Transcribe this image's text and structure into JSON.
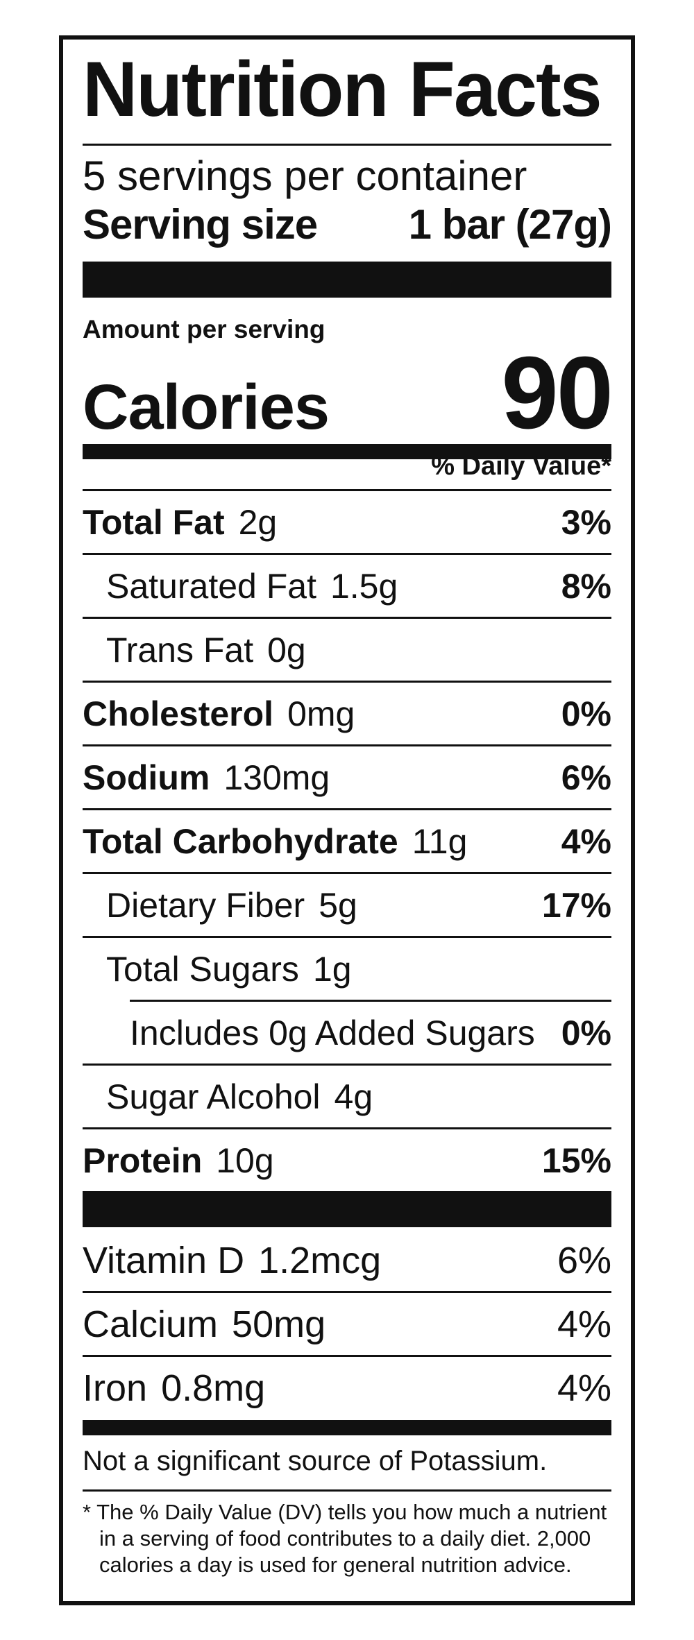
{
  "label": {
    "title_left": "Nutrition",
    "title_right": "Facts",
    "servings_per_container": "5 servings per container",
    "serving_size_label": "Serving size",
    "serving_size_value": "1 bar (27g)",
    "amount_per_serving": "Amount per serving",
    "calories_label": "Calories",
    "calories_value": "90",
    "daily_value_header": "% Daily Value*",
    "nutrients": [
      {
        "name": "Total Fat",
        "amount": "2g",
        "dv": "3%"
      },
      {
        "name": "Saturated Fat",
        "amount": "1.5g",
        "dv": "8%"
      },
      {
        "name": "Trans Fat",
        "amount": "0g",
        "dv": ""
      },
      {
        "name": "Cholesterol",
        "amount": "0mg",
        "dv": "0%"
      },
      {
        "name": "Sodium",
        "amount": "130mg",
        "dv": "6%"
      },
      {
        "name": "Total Carbohydrate",
        "amount": "11g",
        "dv": "4%"
      },
      {
        "name": "Dietary Fiber",
        "amount": "5g",
        "dv": "17%"
      },
      {
        "name": "Total Sugars",
        "amount": "1g",
        "dv": ""
      },
      {
        "name": "Includes 0g Added Sugars",
        "amount": "",
        "dv": "0%"
      },
      {
        "name": "Sugar Alcohol",
        "amount": "4g",
        "dv": ""
      },
      {
        "name": "Protein",
        "amount": "10g",
        "dv": "15%"
      }
    ],
    "vitamins": [
      {
        "name": "Vitamin D",
        "amount": "1.2mcg",
        "dv": "6%"
      },
      {
        "name": "Calcium",
        "amount": "50mg",
        "dv": "4%"
      },
      {
        "name": "Iron",
        "amount": "0.8mg",
        "dv": "4%"
      }
    ],
    "potassium_note": "Not a significant source of Potassium.",
    "footnote": "* The % Daily Value (DV) tells you how much a nutrient in a serving of food contributes to a daily diet. 2,000 calories a day is used for general nutrition advice."
  }
}
